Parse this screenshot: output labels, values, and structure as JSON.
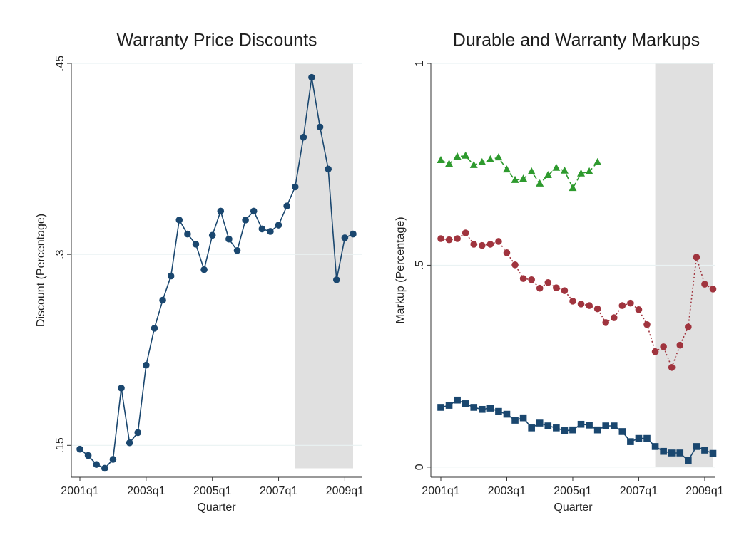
{
  "chart_data": [
    {
      "type": "line",
      "title": "Warranty Price Discounts",
      "x_label": "Quarter",
      "y_label": "Discount (Percentage)",
      "categories": [
        "2001q1",
        null,
        null,
        null,
        null,
        null,
        null,
        null,
        "2003q1",
        null,
        null,
        null,
        null,
        null,
        null,
        null,
        "2005q1",
        null,
        null,
        null,
        null,
        null,
        null,
        null,
        "2007q1",
        null,
        null,
        null,
        null,
        null,
        null,
        null,
        "2009q1",
        null
      ],
      "series": [
        {
          "color": "#1a476f",
          "marker": "circle",
          "line_style": "solid",
          "values": [
            0.147,
            0.142,
            0.135,
            0.132,
            0.139,
            0.195,
            0.152,
            0.16,
            0.213,
            0.242,
            0.264,
            0.283,
            0.327,
            0.316,
            0.308,
            0.288,
            0.315,
            0.334,
            0.312,
            0.303,
            0.327,
            0.334,
            0.32,
            0.318,
            0.323,
            0.338,
            0.353,
            0.392,
            0.439,
            0.4,
            0.367,
            0.28,
            0.313,
            0.316
          ]
        }
      ],
      "ylim": [
        0.125,
        0.45
      ],
      "yticks": [
        {
          "value": 0.15,
          "label": ".15"
        },
        {
          "value": 0.3,
          "label": ".3"
        },
        {
          "value": 0.45,
          "label": ".45"
        }
      ],
      "grid": true,
      "shade": {
        "from": 26,
        "to": 33,
        "ylim": [
          0.132,
          0.45
        ],
        "color": "#e0e0e0"
      }
    },
    {
      "type": "line",
      "title": "Durable and Warranty Markups",
      "x_label": "Quarter",
      "y_label": "Markup (Percentage)",
      "categories": [
        "2001q1",
        null,
        null,
        null,
        null,
        null,
        null,
        null,
        "2003q1",
        null,
        null,
        null,
        null,
        null,
        null,
        null,
        "2005q1",
        null,
        null,
        null,
        null,
        null,
        null,
        null,
        "2007q1",
        null,
        null,
        null,
        null,
        null,
        null,
        null,
        "2009q1",
        null
      ],
      "series": [
        {
          "color": "#2e9a2e",
          "marker": "triangle",
          "line_style": "dashed",
          "values": [
            0.76,
            0.751,
            0.769,
            0.771,
            0.748,
            0.755,
            0.762,
            0.767,
            0.737,
            0.711,
            0.714,
            0.732,
            0.702,
            0.723,
            0.741,
            0.734,
            0.691,
            0.727,
            0.732,
            0.755,
            null,
            null,
            null,
            null,
            null,
            null,
            null,
            null,
            null,
            null,
            null,
            null,
            null,
            null
          ]
        },
        {
          "color": "#a0343e",
          "marker": "circle",
          "line_style": "dotted",
          "values": [
            0.566,
            0.563,
            0.566,
            0.58,
            0.552,
            0.549,
            0.552,
            0.559,
            0.531,
            0.501,
            0.467,
            0.464,
            0.443,
            0.457,
            0.444,
            0.437,
            0.411,
            0.404,
            0.4,
            0.392,
            0.358,
            0.37,
            0.4,
            0.406,
            0.39,
            0.353,
            0.286,
            0.298,
            0.247,
            0.302,
            0.347,
            0.52,
            0.453,
            0.441
          ]
        },
        {
          "color": "#1a476f",
          "marker": "square",
          "line_style": "solid",
          "values": [
            0.148,
            0.153,
            0.166,
            0.157,
            0.148,
            0.143,
            0.146,
            0.138,
            0.131,
            0.116,
            0.122,
            0.097,
            0.109,
            0.102,
            0.097,
            0.09,
            0.092,
            0.106,
            0.104,
            0.092,
            0.102,
            0.102,
            0.088,
            0.063,
            0.071,
            0.071,
            0.051,
            0.039,
            0.035,
            0.035,
            0.016,
            0.051,
            0.042,
            0.034
          ]
        }
      ],
      "ylim": [
        -0.025,
        1
      ],
      "yticks": [
        0,
        {
          "value": 0.5,
          "label": ".5"
        },
        1
      ],
      "grid": true,
      "shade": {
        "from": 26,
        "to": 33,
        "ylim": [
          0,
          1
        ],
        "color": "#e0e0e0"
      }
    }
  ]
}
